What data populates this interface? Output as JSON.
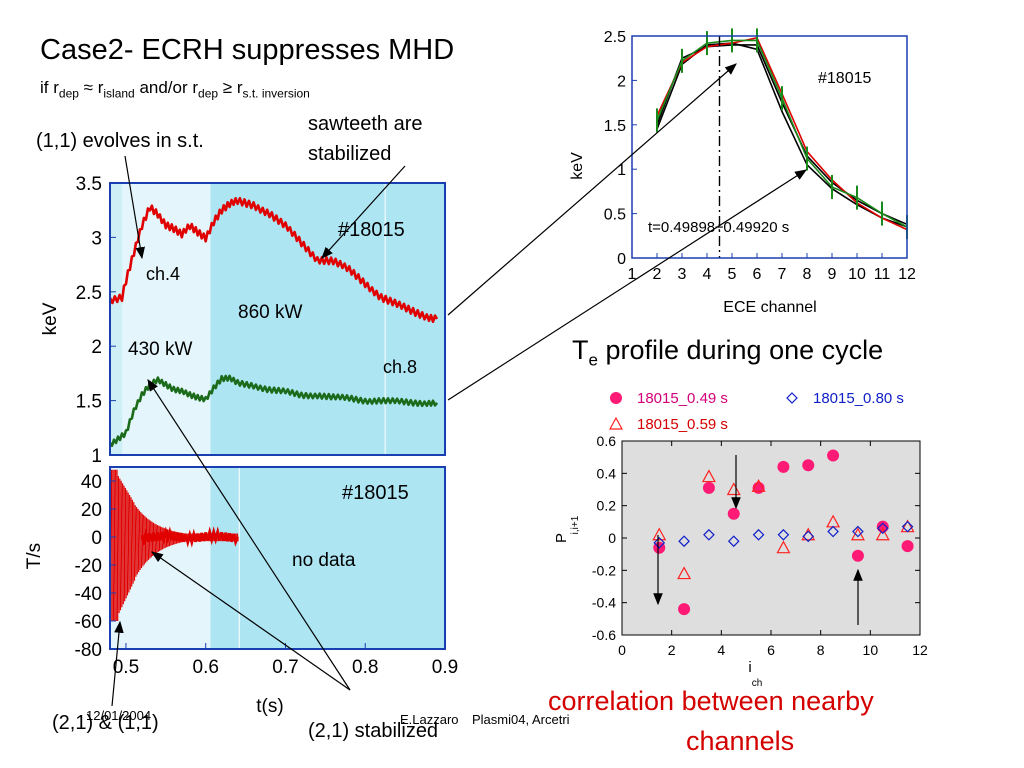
{
  "slide": {
    "title": "Case2- ECRH suppresses MHD",
    "subtitle": {
      "p1": "if r",
      "s1": "dep",
      "p2": " ≈ r",
      "s2": "island",
      "p3": "  and/or  r",
      "s3": "dep",
      "p4": " ≥ r",
      "s4": "s.t. inversion"
    },
    "annotations": {
      "evolves": "(1,1) evolves in s.t.",
      "sawteeth_line1": "sawteeth  are",
      "sawteeth_line2": "stabilized",
      "profile_title_main": "T",
      "profile_title_sub": "e",
      "profile_title_rest": " profile during one cycle",
      "correlation_line1": "correlation between nearby",
      "correlation_line2": "channels",
      "bottom_left": "(2,1) & (1,1)",
      "bottom_mid": "(2,1) stabilized"
    },
    "footer": {
      "date": "12/01/2004",
      "author": "E.Lazzaro",
      "venue": "Plasmi04, Arcetri"
    }
  },
  "chart_data": [
    {
      "type": "line",
      "panel": "te-time-traces",
      "ylabel": "keV",
      "xlim": [
        0.48,
        0.9
      ],
      "ylim": [
        1,
        3.5
      ],
      "yticks": [
        "1",
        "1.5",
        "2",
        "2.5",
        "3",
        "3.5"
      ],
      "labels": {
        "shot": "#18015",
        "ch4": "ch.4",
        "ch8": "ch.8",
        "p430": "430 kW",
        "p860": "860 kW"
      },
      "series": [
        {
          "name": "ch.4",
          "color": "#e00000",
          "x": [
            0.48,
            0.495,
            0.5,
            0.51,
            0.52,
            0.53,
            0.54,
            0.55,
            0.56,
            0.57,
            0.58,
            0.59,
            0.6,
            0.61,
            0.62,
            0.63,
            0.64,
            0.66,
            0.68,
            0.7,
            0.72,
            0.74,
            0.76,
            0.78,
            0.8,
            0.82,
            0.84,
            0.86,
            0.88,
            0.89
          ],
          "y": [
            2.43,
            2.45,
            2.6,
            2.85,
            3.1,
            3.28,
            3.22,
            3.12,
            3.08,
            3.02,
            3.1,
            3.05,
            3.0,
            3.15,
            3.25,
            3.3,
            3.33,
            3.3,
            3.22,
            3.1,
            2.95,
            2.8,
            2.78,
            2.7,
            2.58,
            2.45,
            2.38,
            2.32,
            2.27,
            2.25
          ]
        },
        {
          "name": "ch.8",
          "color": "#1b6b1b",
          "x": [
            0.48,
            0.49,
            0.5,
            0.51,
            0.52,
            0.53,
            0.54,
            0.55,
            0.56,
            0.57,
            0.58,
            0.59,
            0.6,
            0.61,
            0.62,
            0.63,
            0.64,
            0.66,
            0.68,
            0.7,
            0.72,
            0.74,
            0.76,
            0.78,
            0.8,
            0.82,
            0.84,
            0.86,
            0.88,
            0.89
          ],
          "y": [
            1.1,
            1.15,
            1.2,
            1.4,
            1.55,
            1.65,
            1.7,
            1.65,
            1.6,
            1.58,
            1.55,
            1.53,
            1.52,
            1.62,
            1.7,
            1.7,
            1.66,
            1.64,
            1.6,
            1.58,
            1.55,
            1.55,
            1.53,
            1.52,
            1.5,
            1.5,
            1.49,
            1.48,
            1.48,
            1.48
          ]
        }
      ]
    },
    {
      "type": "line",
      "panel": "mhd-signal",
      "ylabel": "T/s",
      "xlabel": "t(s)",
      "xlim": [
        0.48,
        0.9
      ],
      "ylim": [
        -80,
        50
      ],
      "xticks": [
        "0.5",
        "0.6",
        "0.7",
        "0.8",
        "0.9"
      ],
      "yticks": [
        "-80",
        "-60",
        "-40",
        "-20",
        "0",
        "20",
        "40"
      ],
      "labels": {
        "shot": "#18015",
        "nodata": "no data"
      },
      "series": [
        {
          "name": "MHD",
          "color": "#e00000",
          "x": [
            0.48,
            0.485,
            0.49,
            0.495,
            0.5,
            0.505,
            0.51,
            0.52,
            0.53,
            0.54,
            0.56,
            0.58,
            0.6,
            0.62,
            0.64
          ],
          "y": [
            0,
            48,
            -75,
            45,
            -65,
            38,
            -35,
            20,
            -10,
            5,
            2,
            1,
            0,
            0,
            0
          ]
        }
      ]
    },
    {
      "type": "line",
      "panel": "te-profile",
      "ylabel": "keV",
      "xlabel": "ECE channel",
      "xlim": [
        1,
        12
      ],
      "ylim": [
        0,
        2.5
      ],
      "xticks": [
        "1",
        "2",
        "3",
        "4",
        "5",
        "6",
        "7",
        "8",
        "9",
        "10",
        "11",
        "12"
      ],
      "yticks": [
        "0",
        "0.5",
        "1",
        "1.5",
        "2",
        "2.5"
      ],
      "labels": {
        "shot": "#18015",
        "time": "t=0.49898÷0.49920 s"
      },
      "series": [
        {
          "name": "black-1",
          "color": "#000000",
          "x": [
            2,
            3,
            4,
            5,
            6,
            7,
            8,
            9,
            10,
            11,
            12
          ],
          "y": [
            1.5,
            2.25,
            2.38,
            2.4,
            2.4,
            1.75,
            1.15,
            0.85,
            0.65,
            0.5,
            0.38
          ]
        },
        {
          "name": "black-2",
          "color": "#000000",
          "x": [
            2,
            3,
            4,
            5,
            6,
            7,
            8,
            9,
            10,
            11,
            12
          ],
          "y": [
            1.45,
            2.18,
            2.4,
            2.42,
            2.35,
            1.65,
            1.05,
            0.78,
            0.6,
            0.45,
            0.35
          ]
        },
        {
          "name": "red",
          "color": "#e00000",
          "x": [
            2,
            3,
            4,
            5,
            6,
            7,
            8,
            9,
            10,
            11,
            12
          ],
          "y": [
            1.6,
            2.2,
            2.38,
            2.42,
            2.48,
            1.85,
            1.2,
            0.88,
            0.62,
            0.45,
            0.32
          ]
        },
        {
          "name": "green",
          "color": "#1a8a1a",
          "x": [
            2,
            3,
            4,
            5,
            6,
            7,
            8,
            9,
            10,
            11,
            12
          ],
          "y": [
            1.55,
            2.22,
            2.42,
            2.45,
            2.45,
            1.8,
            1.12,
            0.8,
            0.68,
            0.5,
            0.35
          ]
        }
      ]
    },
    {
      "type": "scatter",
      "panel": "correlation",
      "ylabel": "P",
      "ylabel_sub": "i,i+1",
      "xlabel": "i",
      "xlabel_sub": "ch",
      "xlim": [
        0,
        12
      ],
      "ylim": [
        -0.6,
        0.6
      ],
      "xticks": [
        "0",
        "2",
        "4",
        "6",
        "8",
        "10",
        "12"
      ],
      "yticks": [
        "-0.6",
        "-0.4",
        "-0.2",
        "0",
        "0.2",
        "0.4",
        "0.6"
      ],
      "legend": "top",
      "series": [
        {
          "name": "18015_0.49 s",
          "color": "#ff1a75",
          "marker": "circle",
          "x": [
            1.5,
            2.5,
            3.5,
            4.5,
            5.5,
            6.5,
            7.5,
            8.5,
            9.5,
            10.5,
            11.5
          ],
          "y": [
            -0.06,
            -0.44,
            0.31,
            0.15,
            0.31,
            0.44,
            0.45,
            0.51,
            -0.11,
            0.07,
            -0.05
          ]
        },
        {
          "name": "18015_0.59 s",
          "color": "#ff2020",
          "marker": "triangle",
          "x": [
            1.5,
            2.5,
            3.5,
            4.5,
            5.5,
            6.5,
            7.5,
            8.5,
            9.5,
            10.5,
            11.5
          ],
          "y": [
            0.02,
            -0.22,
            0.38,
            0.3,
            0.32,
            -0.06,
            0.02,
            0.1,
            0.02,
            0.02,
            0.07
          ]
        },
        {
          "name": "18015_0.80 s",
          "color": "#1020c8",
          "marker": "diamond",
          "x": [
            1.5,
            2.5,
            3.5,
            4.5,
            5.5,
            6.5,
            7.5,
            8.5,
            9.5,
            10.5,
            11.5
          ],
          "y": [
            -0.03,
            -0.02,
            0.02,
            -0.02,
            0.02,
            0.02,
            0.01,
            0.04,
            0.04,
            0.06,
            0.07
          ]
        }
      ]
    }
  ]
}
